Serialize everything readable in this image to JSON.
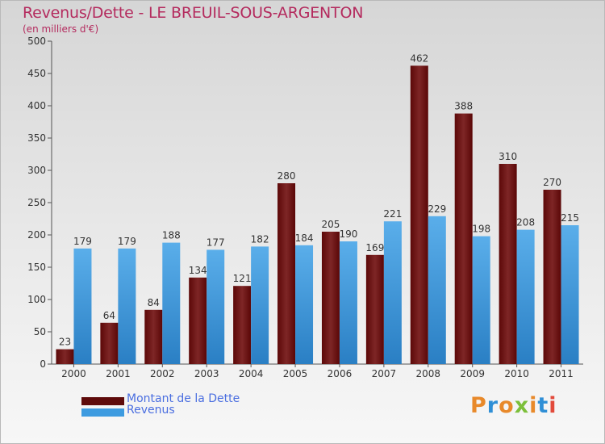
{
  "title": "Revenus/Dette - LE BREUIL-SOUS-ARGENTON",
  "subtitle": "(en milliers d'€)",
  "brand": "Proxiti",
  "colors": {
    "title": "#b42b5e",
    "debt": "#7a1a1a",
    "revenue": "#3d9be0",
    "legend_text": "#4a6ee0"
  },
  "chart_data": {
    "type": "bar",
    "categories": [
      "2000",
      "2001",
      "2002",
      "2003",
      "2004",
      "2005",
      "2006",
      "2007",
      "2008",
      "2009",
      "2010",
      "2011"
    ],
    "series": [
      {
        "name": "Montant de la Dette",
        "values": [
          23,
          64,
          84,
          134,
          121,
          280,
          205,
          169,
          462,
          388,
          310,
          270
        ]
      },
      {
        "name": "Revenus",
        "values": [
          179,
          179,
          188,
          177,
          182,
          184,
          190,
          221,
          229,
          198,
          208,
          215
        ]
      }
    ],
    "ylim": [
      0,
      500
    ],
    "yticks": [
      0,
      50,
      100,
      150,
      200,
      250,
      300,
      350,
      400,
      450,
      500
    ],
    "grid": false,
    "legend_position": "bottom-left",
    "data_labels": true
  }
}
